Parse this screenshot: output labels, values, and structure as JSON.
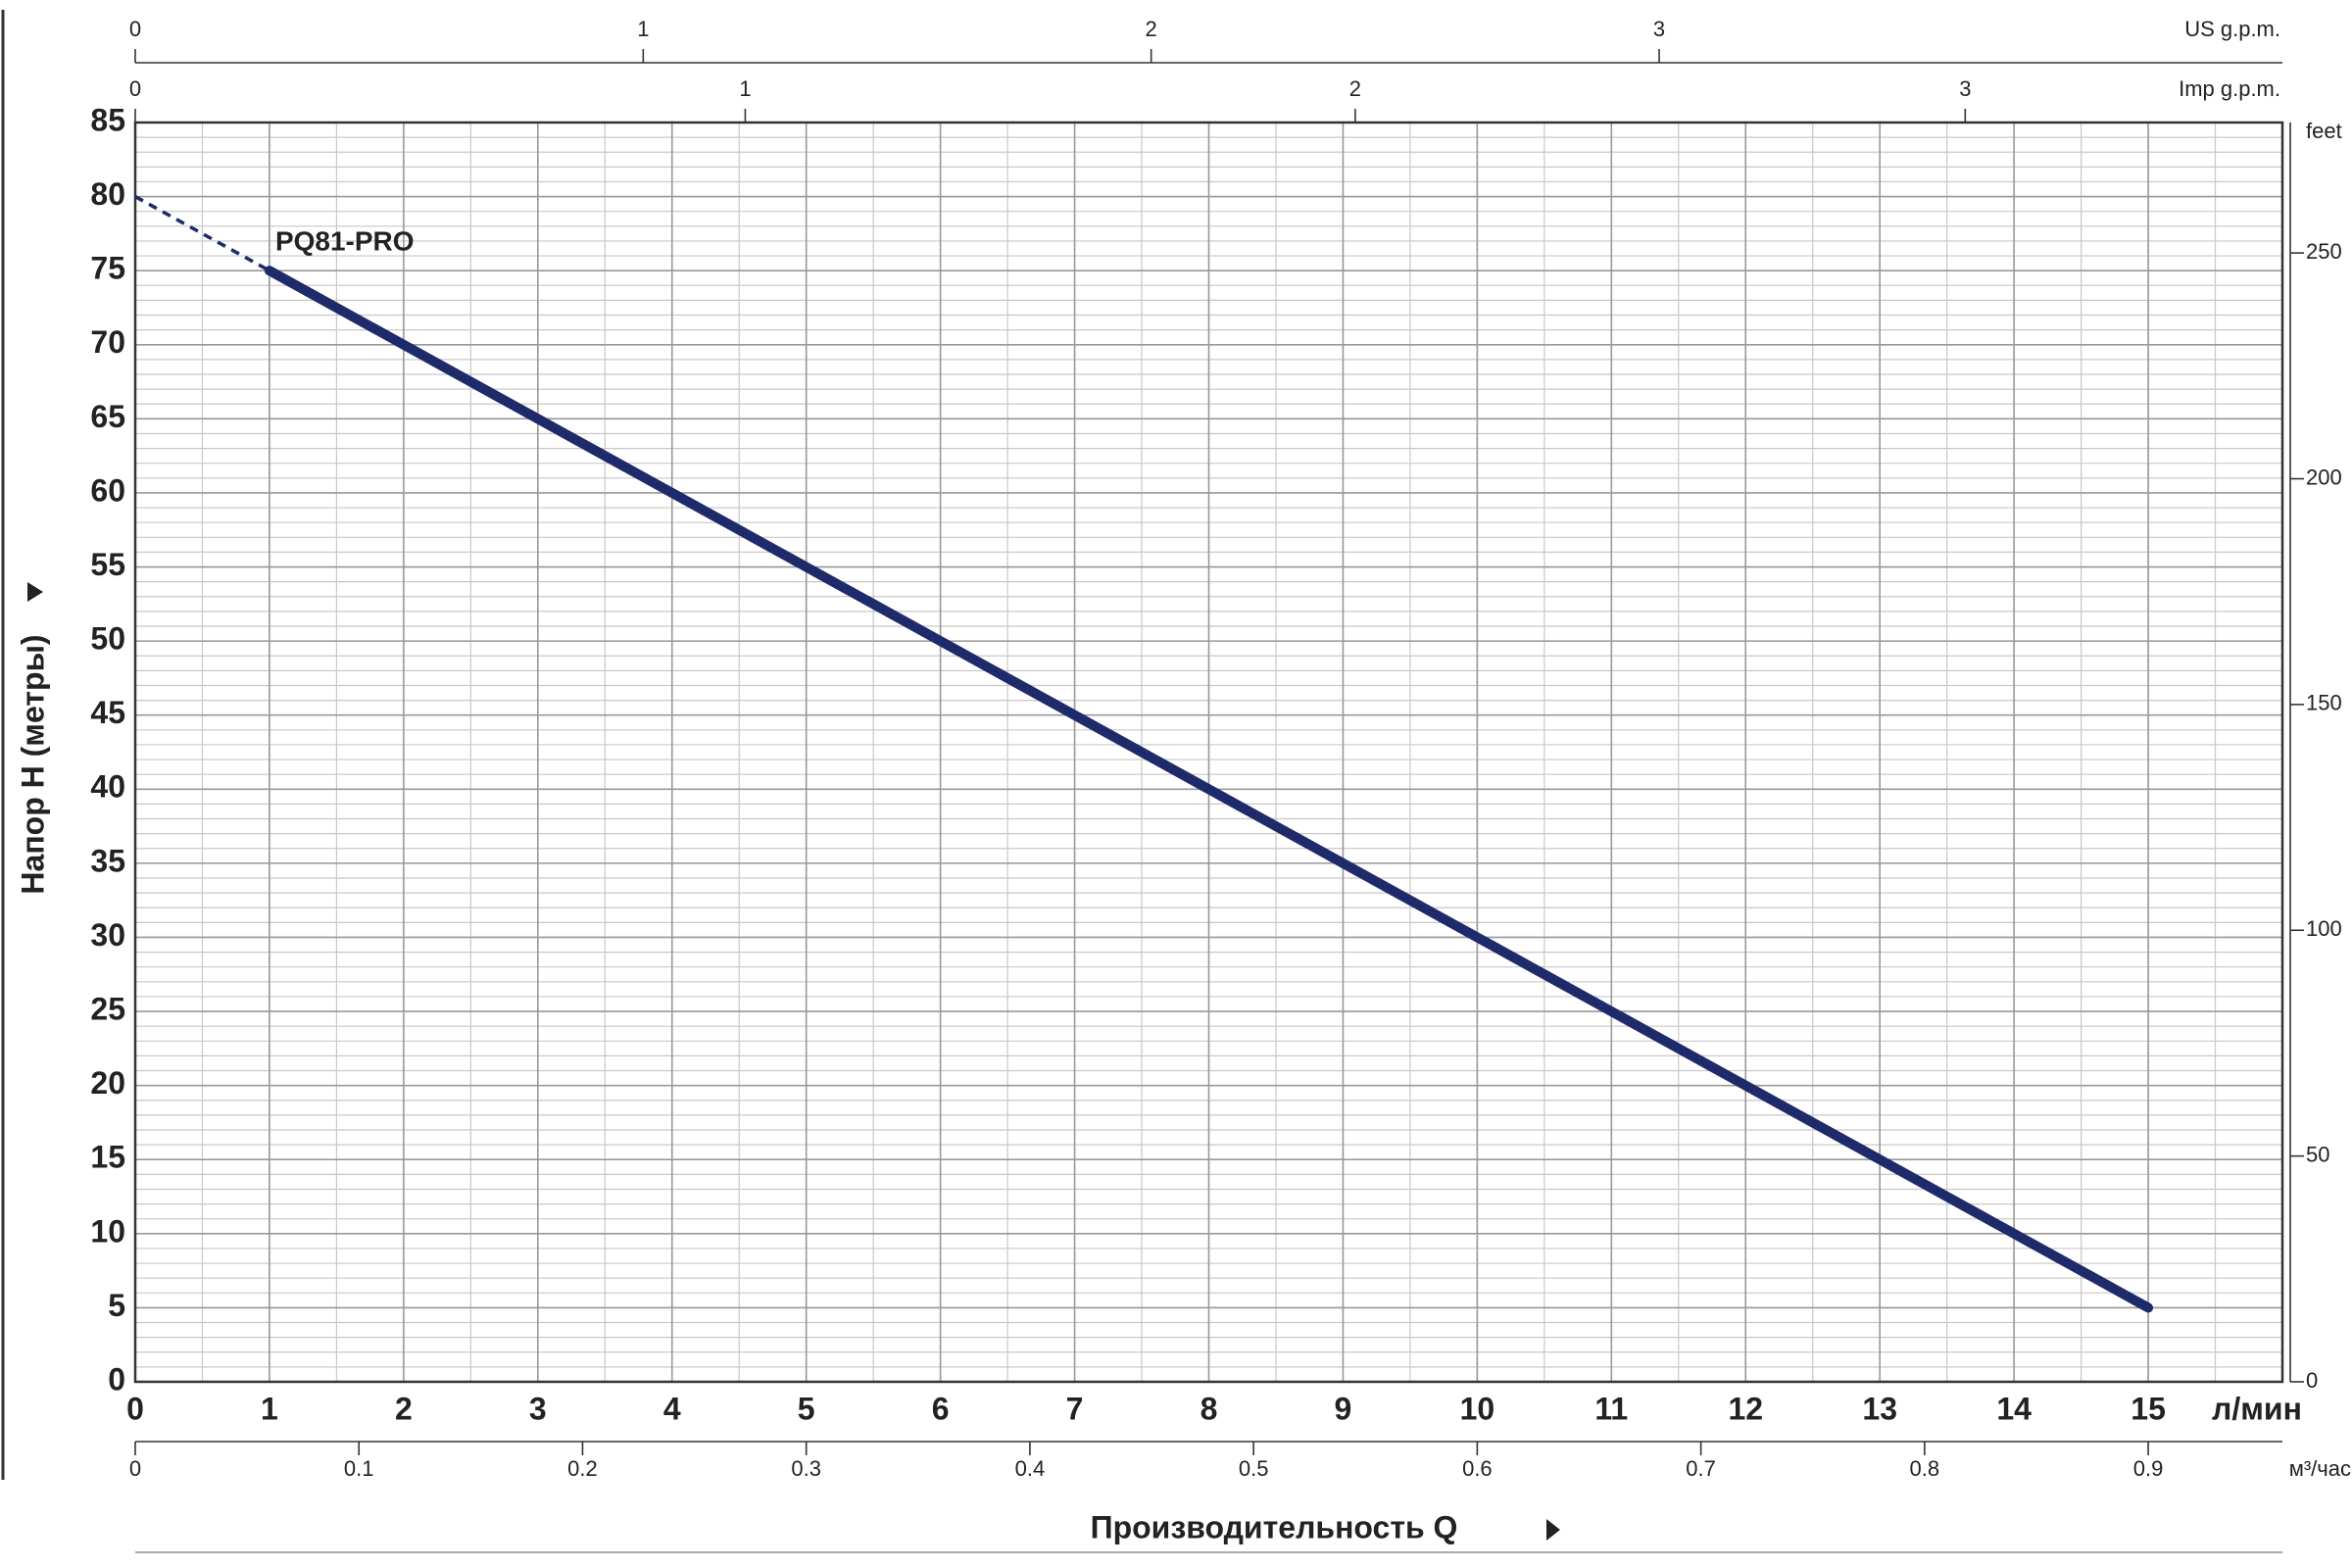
{
  "chart_data": {
    "type": "line",
    "series": [
      {
        "name": "PQ81-PRO",
        "color": "#1f2a6b",
        "x": [
          1,
          15
        ],
        "values": [
          75,
          5
        ]
      }
    ],
    "dashed_extension": {
      "x": [
        0,
        1
      ],
      "values": [
        80,
        75
      ]
    },
    "xlabel": "Производительность Q",
    "xunit": "л/мин",
    "ylabel": "Напор H (метры)",
    "xlim": [
      0,
      16
    ],
    "xticks": [
      0,
      1,
      2,
      3,
      4,
      5,
      6,
      7,
      8,
      9,
      10,
      11,
      12,
      13,
      14,
      15
    ],
    "ylim": [
      0,
      85
    ],
    "yticks": [
      0,
      5,
      10,
      15,
      20,
      25,
      30,
      35,
      40,
      45,
      50,
      55,
      60,
      65,
      70,
      75,
      80,
      85
    ],
    "grid": true,
    "minor_grid": {
      "x": 0.5,
      "y": 1
    },
    "y2label": "feet",
    "y2lim": [
      0,
      278.9
    ],
    "y2ticks": [
      0,
      50,
      100,
      150,
      200,
      250
    ],
    "secondary_axes": [
      {
        "label": "US g.p.m.",
        "position": "top",
        "lim": [
          0,
          4.227
        ],
        "ticks": [
          0,
          1,
          2,
          3
        ]
      },
      {
        "label": "Imp g.p.m.",
        "position": "top2",
        "lim": [
          0,
          3.52
        ],
        "ticks": [
          0,
          1,
          2,
          3
        ]
      },
      {
        "label": "м³/час",
        "position": "bottom",
        "lim": [
          0,
          0.96
        ],
        "ticks": [
          0,
          0.1,
          0.2,
          0.3,
          0.4,
          0.5,
          0.6,
          0.7,
          0.8,
          0.9
        ]
      }
    ]
  }
}
